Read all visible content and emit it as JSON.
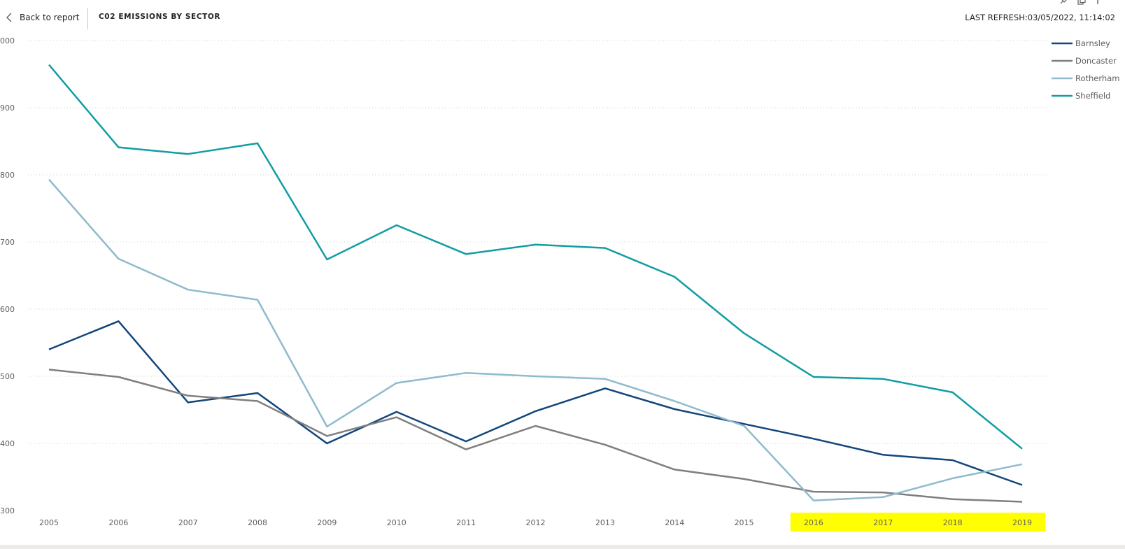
{
  "header": {
    "back_label": "Back to report",
    "title": "C02 EMISSIONS BY SECTOR",
    "last_refresh": "LAST REFRESH:03/05/2022, 11:14:02"
  },
  "icons": {
    "back": "chevron-left-icon",
    "pin": "pin-icon",
    "copy": "copy-icon",
    "more": "more-options-icon"
  },
  "chart_data": {
    "type": "line",
    "title": "",
    "xlabel": "",
    "ylabel": "",
    "x": [
      "2005",
      "2006",
      "2007",
      "2008",
      "2009",
      "2010",
      "2011",
      "2012",
      "2013",
      "2014",
      "2015",
      "2016",
      "2017",
      "2018",
      "2019"
    ],
    "y_ticks": [
      "000",
      "900",
      "800",
      "700",
      "600",
      "500",
      "400",
      "300"
    ],
    "ylim": [
      300,
      1000
    ],
    "grid": true,
    "legend_position": "top-right",
    "highlighted_x": [
      "2016",
      "2017",
      "2018",
      "2019"
    ],
    "highlight_color": "#ffff00",
    "series": [
      {
        "name": "Barnsley",
        "color": "#12467c",
        "values": [
          540,
          582,
          461,
          475,
          400,
          447,
          403,
          448,
          482,
          451,
          429,
          407,
          383,
          375,
          338
        ]
      },
      {
        "name": "Doncaster",
        "color": "#7f7f7f",
        "values": [
          510,
          499,
          471,
          463,
          411,
          439,
          391,
          426,
          398,
          361,
          347,
          328,
          327,
          317,
          313
        ]
      },
      {
        "name": "Rotherham",
        "color": "#8fbbcc",
        "values": [
          793,
          675,
          629,
          614,
          425,
          490,
          505,
          500,
          496,
          463,
          426,
          315,
          320,
          348,
          369
        ]
      },
      {
        "name": "Sheffield",
        "color": "#119da4",
        "values": [
          964,
          841,
          831,
          847,
          674,
          725,
          682,
          696,
          691,
          648,
          564,
          499,
          496,
          476,
          392
        ]
      }
    ]
  }
}
